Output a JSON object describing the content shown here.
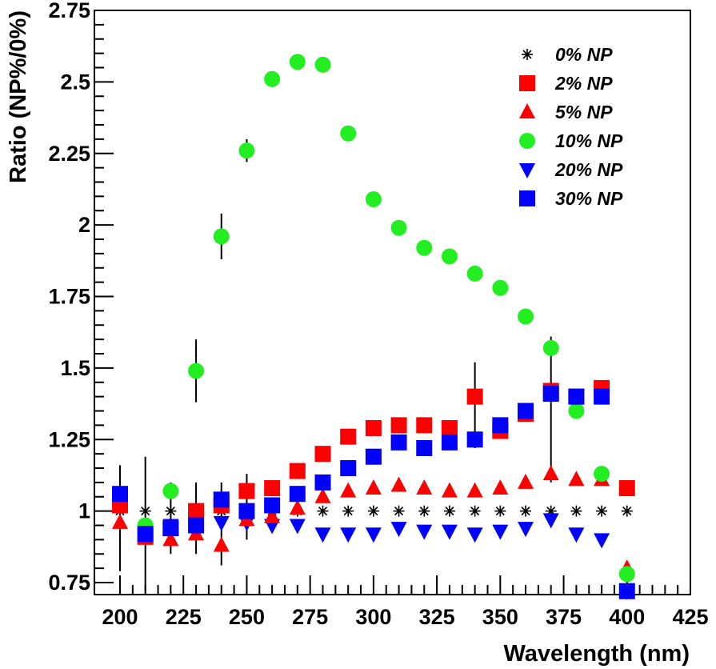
{
  "chart_data": {
    "type": "scatter",
    "title": "",
    "xlabel": "Wavelength (nm)",
    "ylabel": "Ratio (NP%/0%)",
    "xlim": [
      195,
      425
    ],
    "ylim": [
      0.73,
      2.75
    ],
    "xticks": [
      200,
      225,
      250,
      275,
      300,
      325,
      350,
      375,
      400,
      425
    ],
    "xtick_labels": [
      "200",
      "225",
      "250",
      "275",
      "300",
      "325",
      "350",
      "375",
      "400",
      "425"
    ],
    "yticks": [
      0.75,
      1,
      1.25,
      1.5,
      1.75,
      2,
      2.25,
      2.5,
      2.75
    ],
    "ytick_labels": [
      "0.75",
      "1",
      "1.25",
      "1.5",
      "1.75",
      "2",
      "2.25",
      "2.5",
      "2.75"
    ],
    "grid": false,
    "legend_position": "top-right",
    "series": [
      {
        "name": "0% NP",
        "marker": "asterisk",
        "color": "#000000",
        "points": [
          [
            200,
            1.0
          ],
          [
            210,
            1.0
          ],
          [
            220,
            1.0
          ],
          [
            230,
            1.0
          ],
          [
            240,
            1.0
          ],
          [
            250,
            1.0
          ],
          [
            260,
            1.0
          ],
          [
            270,
            1.0
          ],
          [
            280,
            1.0
          ],
          [
            290,
            1.0
          ],
          [
            300,
            1.0
          ],
          [
            310,
            1.0
          ],
          [
            320,
            1.0
          ],
          [
            330,
            1.0
          ],
          [
            340,
            1.0
          ],
          [
            350,
            1.0
          ],
          [
            360,
            1.0
          ],
          [
            370,
            1.0
          ],
          [
            380,
            1.0
          ],
          [
            390,
            1.0
          ],
          [
            400,
            1.0
          ]
        ]
      },
      {
        "name": "2% NP",
        "marker": "square",
        "color": "#ff0000",
        "points": [
          [
            200,
            1.02
          ],
          [
            210,
            0.91
          ],
          [
            220,
            0.94
          ],
          [
            230,
            1.0
          ],
          [
            240,
            1.02
          ],
          [
            250,
            1.07
          ],
          [
            260,
            1.08
          ],
          [
            270,
            1.14
          ],
          [
            280,
            1.2
          ],
          [
            290,
            1.26
          ],
          [
            300,
            1.29
          ],
          [
            310,
            1.3
          ],
          [
            320,
            1.3
          ],
          [
            330,
            1.29
          ],
          [
            340,
            1.4
          ],
          [
            350,
            1.28
          ],
          [
            360,
            1.34
          ],
          [
            370,
            1.42
          ],
          [
            380,
            1.4
          ],
          [
            390,
            1.43
          ],
          [
            400,
            1.08
          ]
        ]
      },
      {
        "name": "5% NP",
        "marker": "triangle-up",
        "color": "#ff0000",
        "points": [
          [
            200,
            0.96
          ],
          [
            210,
            0.92
          ],
          [
            220,
            0.9
          ],
          [
            230,
            0.92
          ],
          [
            240,
            0.88
          ],
          [
            250,
            0.97
          ],
          [
            260,
            0.98
          ],
          [
            270,
            1.01
          ],
          [
            280,
            1.05
          ],
          [
            290,
            1.07
          ],
          [
            300,
            1.08
          ],
          [
            310,
            1.09
          ],
          [
            320,
            1.08
          ],
          [
            330,
            1.07
          ],
          [
            340,
            1.07
          ],
          [
            350,
            1.08
          ],
          [
            360,
            1.1
          ],
          [
            370,
            1.13
          ],
          [
            380,
            1.11
          ],
          [
            390,
            1.11
          ],
          [
            400,
            0.8
          ]
        ]
      },
      {
        "name": "10% NP",
        "marker": "circle",
        "color": "#22ee22",
        "points": [
          [
            200,
            1.02
          ],
          [
            210,
            0.95
          ],
          [
            220,
            1.07
          ],
          [
            230,
            1.49
          ],
          [
            240,
            1.96
          ],
          [
            250,
            2.26
          ],
          [
            260,
            2.51
          ],
          [
            270,
            2.57
          ],
          [
            280,
            2.56
          ],
          [
            290,
            2.32
          ],
          [
            300,
            2.09
          ],
          [
            310,
            1.99
          ],
          [
            320,
            1.92
          ],
          [
            330,
            1.89
          ],
          [
            340,
            1.83
          ],
          [
            350,
            1.78
          ],
          [
            360,
            1.68
          ],
          [
            370,
            1.57
          ],
          [
            380,
            1.35
          ],
          [
            390,
            1.13
          ],
          [
            400,
            0.78
          ]
        ]
      },
      {
        "name": "20% NP",
        "marker": "triangle-down",
        "color": "#0000ff",
        "points": [
          [
            200,
            1.06
          ],
          [
            210,
            0.93
          ],
          [
            220,
            0.95
          ],
          [
            230,
            0.96
          ],
          [
            240,
            0.96
          ],
          [
            250,
            0.96
          ],
          [
            260,
            0.95
          ],
          [
            270,
            0.95
          ],
          [
            280,
            0.92
          ],
          [
            290,
            0.92
          ],
          [
            300,
            0.92
          ],
          [
            310,
            0.94
          ],
          [
            320,
            0.93
          ],
          [
            330,
            0.93
          ],
          [
            340,
            0.92
          ],
          [
            350,
            0.93
          ],
          [
            360,
            0.94
          ],
          [
            370,
            0.97
          ],
          [
            380,
            0.92
          ],
          [
            390,
            0.9
          ],
          [
            400,
            0.72
          ]
        ]
      },
      {
        "name": "30% NP",
        "marker": "square",
        "color": "#0000ff",
        "points": [
          [
            200,
            1.06
          ],
          [
            210,
            0.92
          ],
          [
            220,
            0.94
          ],
          [
            230,
            0.95
          ],
          [
            240,
            1.04
          ],
          [
            250,
            1.0
          ],
          [
            260,
            1.02
          ],
          [
            270,
            1.06
          ],
          [
            280,
            1.1
          ],
          [
            290,
            1.15
          ],
          [
            300,
            1.19
          ],
          [
            310,
            1.24
          ],
          [
            320,
            1.22
          ],
          [
            330,
            1.24
          ],
          [
            340,
            1.25
          ],
          [
            350,
            1.3
          ],
          [
            360,
            1.35
          ],
          [
            370,
            1.41
          ],
          [
            380,
            1.4
          ],
          [
            390,
            1.4
          ],
          [
            400,
            0.72
          ]
        ]
      }
    ],
    "error_bars": [
      {
        "x": 200,
        "low": 0.79,
        "high": 1.16
      },
      {
        "x": 210,
        "low": 0.72,
        "high": 1.19
      },
      {
        "x": 220,
        "low": 0.85,
        "high": 1.1
      },
      {
        "x": 230,
        "low": 1.38,
        "high": 1.6
      },
      {
        "x": 240,
        "low": 1.88,
        "high": 2.04
      },
      {
        "x": 250,
        "low": 2.22,
        "high": 2.3
      },
      {
        "x": 240,
        "low": 0.81,
        "high": 1.1
      },
      {
        "x": 250,
        "low": 0.9,
        "high": 1.13
      },
      {
        "x": 230,
        "low": 0.85,
        "high": 1.1
      },
      {
        "x": 340,
        "low": 1.22,
        "high": 1.52
      },
      {
        "x": 370,
        "low": 1.1,
        "high": 1.61
      }
    ]
  }
}
